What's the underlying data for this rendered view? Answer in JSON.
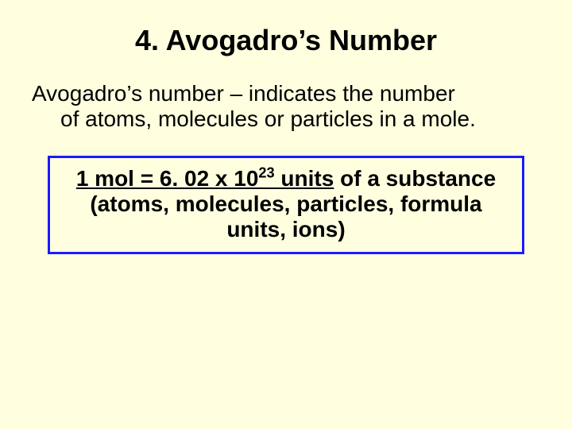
{
  "slide": {
    "background_color": "#ffffe0",
    "text_color": "#000000",
    "title": {
      "text": "4.  Avogadro’s Number",
      "fontsize": 36,
      "fontweight": "bold"
    },
    "definition": {
      "line1": "Avogadro’s number – indicates the number",
      "line2": "of atoms, molecules or particles in a mole.",
      "fontsize": 28,
      "fontweight": "normal"
    },
    "formula_box": {
      "border_color": "#1a1aff",
      "border_width": 3,
      "inner_bg": "#ffffe0",
      "fontsize": 28,
      "fontweight": "bold",
      "line1_pre": "1 mol = 6. 02 x 10",
      "line1_exp": "23",
      "line1_post": " units",
      "line1_tail": " of a substance",
      "line2": "(atoms, molecules, particles, formula",
      "line3": "units, ions)"
    }
  }
}
